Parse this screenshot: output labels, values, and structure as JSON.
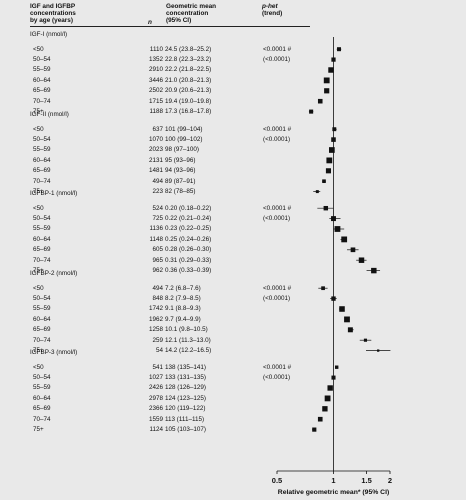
{
  "header": {
    "col1": [
      "IGF and IGFBP",
      "concentrations",
      "by age (years)"
    ],
    "col2": "n",
    "col3": [
      "Geometric mean",
      "concentration",
      "(95% CI)"
    ],
    "col4": [
      "p-het",
      "(trend)"
    ]
  },
  "groups": [
    {
      "name": "IGF-I (nmol/l)",
      "phet": "<0.0001 #",
      "ptrend": "(<0.0001)",
      "rows": [
        {
          "age": "<50",
          "n": "1110",
          "ci": "24.5 (23.8–25.2)",
          "rel": 1.07,
          "lo": 1.04,
          "hi": 1.1
        },
        {
          "age": "50–54",
          "n": "1352",
          "ci": "22.8 (22.3–23.2)",
          "rel": 1.0,
          "lo": 0.98,
          "hi": 1.02
        },
        {
          "age": "55–59",
          "n": "2910",
          "ci": "22.2 (21.8–22.5)",
          "rel": 0.97,
          "lo": 0.96,
          "hi": 0.99
        },
        {
          "age": "60–64",
          "n": "3446",
          "ci": "21.0 (20.8–21.3)",
          "rel": 0.92,
          "lo": 0.91,
          "hi": 0.93
        },
        {
          "age": "65–69",
          "n": "2502",
          "ci": "20.9 (20.6–21.3)",
          "rel": 0.92,
          "lo": 0.9,
          "hi": 0.93
        },
        {
          "age": "70–74",
          "n": "1715",
          "ci": "19.4 (19.0–19.8)",
          "rel": 0.85,
          "lo": 0.83,
          "hi": 0.87
        },
        {
          "age": "75+",
          "n": "1188",
          "ci": "17.3 (16.8–17.8)",
          "rel": 0.76,
          "lo": 0.74,
          "hi": 0.78
        }
      ]
    },
    {
      "name": "IGF-II (nmol/l)",
      "phet": "<0.0001 #",
      "ptrend": "(<0.0001)",
      "rows": [
        {
          "age": "<50",
          "n": "637",
          "ci": "101 (99–104)",
          "rel": 1.01,
          "lo": 0.99,
          "hi": 1.04
        },
        {
          "age": "50–54",
          "n": "1070",
          "ci": "100 (99–102)",
          "rel": 1.0,
          "lo": 0.99,
          "hi": 1.02
        },
        {
          "age": "55–59",
          "n": "2023",
          "ci": "98 (97–100)",
          "rel": 0.98,
          "lo": 0.97,
          "hi": 1.0
        },
        {
          "age": "60–64",
          "n": "2131",
          "ci": "95 (93–96)",
          "rel": 0.95,
          "lo": 0.93,
          "hi": 0.96
        },
        {
          "age": "65–69",
          "n": "1481",
          "ci": "94 (93–96)",
          "rel": 0.94,
          "lo": 0.93,
          "hi": 0.96
        },
        {
          "age": "70–74",
          "n": "494",
          "ci": "89 (87–91)",
          "rel": 0.89,
          "lo": 0.87,
          "hi": 0.91
        },
        {
          "age": "75+",
          "n": "223",
          "ci": "82 (78–85)",
          "rel": 0.82,
          "lo": 0.78,
          "hi": 0.85
        }
      ]
    },
    {
      "name": "IGFBP-1 (nmol/l)",
      "phet": "<0.0001 #",
      "ptrend": "(<0.0001)",
      "rows": [
        {
          "age": "<50",
          "n": "524",
          "ci": "0.20 (0.18–0.22)",
          "rel": 0.91,
          "lo": 0.82,
          "hi": 1.0
        },
        {
          "age": "50–54",
          "n": "725",
          "ci": "0.22 (0.21–0.24)",
          "rel": 1.0,
          "lo": 0.95,
          "hi": 1.09
        },
        {
          "age": "55–59",
          "n": "1136",
          "ci": "0.23 (0.22–0.25)",
          "rel": 1.05,
          "lo": 1.0,
          "hi": 1.14
        },
        {
          "age": "60–64",
          "n": "1148",
          "ci": "0.25 (0.24–0.26)",
          "rel": 1.14,
          "lo": 1.09,
          "hi": 1.18
        },
        {
          "age": "65–69",
          "n": "605",
          "ci": "0.28 (0.26–0.30)",
          "rel": 1.27,
          "lo": 1.18,
          "hi": 1.36
        },
        {
          "age": "70–74",
          "n": "965",
          "ci": "0.31 (0.29–0.33)",
          "rel": 1.41,
          "lo": 1.32,
          "hi": 1.5
        },
        {
          "age": "75+",
          "n": "962",
          "ci": "0.36 (0.33–0.39)",
          "rel": 1.64,
          "lo": 1.5,
          "hi": 1.77
        }
      ]
    },
    {
      "name": "IGFBP-2 (nmol/l)",
      "phet": "<0.0001 #",
      "ptrend": "(<0.0001)",
      "rows": [
        {
          "age": "<50",
          "n": "494",
          "ci": "7.2 (6.8–7.6)",
          "rel": 0.88,
          "lo": 0.83,
          "hi": 0.93
        },
        {
          "age": "50–54",
          "n": "848",
          "ci": "8.2 (7.9–8.5)",
          "rel": 1.0,
          "lo": 0.96,
          "hi": 1.04
        },
        {
          "age": "55–59",
          "n": "1742",
          "ci": "9.1 (8.8–9.3)",
          "rel": 1.11,
          "lo": 1.07,
          "hi": 1.13
        },
        {
          "age": "60–64",
          "n": "1962",
          "ci": "9.7 (9.4–9.9)",
          "rel": 1.18,
          "lo": 1.15,
          "hi": 1.21
        },
        {
          "age": "65–69",
          "n": "1258",
          "ci": "10.1 (9.8–10.5)",
          "rel": 1.23,
          "lo": 1.2,
          "hi": 1.28
        },
        {
          "age": "70–74",
          "n": "259",
          "ci": "12.1 (11.3–13.0)",
          "rel": 1.48,
          "lo": 1.38,
          "hi": 1.59
        },
        {
          "age": "75+",
          "n": "54",
          "ci": "14.2 (12.2–16.5)",
          "rel": 1.73,
          "lo": 1.49,
          "hi": 2.01
        }
      ]
    },
    {
      "name": "IGFBP-3 (nmol/l)",
      "phet": "<0.0001 #",
      "ptrend": "(<0.0001)",
      "rows": [
        {
          "age": "<50",
          "n": "541",
          "ci": "138 (135–141)",
          "rel": 1.04,
          "lo": 1.02,
          "hi": 1.06
        },
        {
          "age": "50–54",
          "n": "1027",
          "ci": "133 (131–135)",
          "rel": 1.0,
          "lo": 0.98,
          "hi": 1.02
        },
        {
          "age": "55–59",
          "n": "2426",
          "ci": "128 (126–129)",
          "rel": 0.96,
          "lo": 0.95,
          "hi": 0.97
        },
        {
          "age": "60–64",
          "n": "2978",
          "ci": "124 (123–125)",
          "rel": 0.93,
          "lo": 0.92,
          "hi": 0.94
        },
        {
          "age": "65–69",
          "n": "2366",
          "ci": "120 (119–122)",
          "rel": 0.9,
          "lo": 0.89,
          "hi": 0.92
        },
        {
          "age": "70–74",
          "n": "1559",
          "ci": "113 (111–115)",
          "rel": 0.85,
          "lo": 0.83,
          "hi": 0.86
        },
        {
          "age": "75+",
          "n": "1124",
          "ci": "105 (103–107)",
          "rel": 0.79,
          "lo": 0.77,
          "hi": 0.8
        }
      ]
    }
  ],
  "chart_data": {
    "type": "scatter",
    "subtype": "forest-plot",
    "xlabel": "Relative geometric mean* (95% CI)",
    "xscale": "log",
    "xlim": [
      0.5,
      2
    ],
    "xticks": [
      "0.5",
      "1",
      "1.5",
      "2"
    ],
    "xtick_values": [
      0.5,
      1,
      1.5,
      2
    ],
    "reference_line": 1,
    "marker_color": "#111111"
  }
}
